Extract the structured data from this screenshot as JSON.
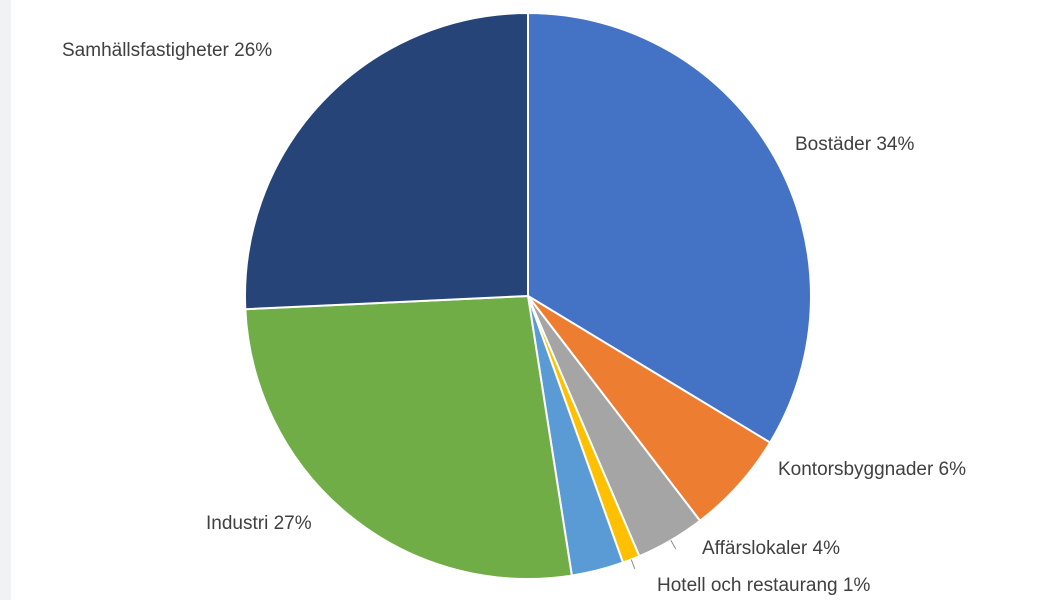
{
  "chart_data": {
    "type": "pie",
    "title": "",
    "slices": [
      {
        "label": "Bostäder",
        "value": 34,
        "display": "Bostäder 34%",
        "color": "#4472c4"
      },
      {
        "label": "Kontorsbyggnader",
        "value": 6,
        "display": "Kontorsbyggnader 6%",
        "color": "#ed7d31"
      },
      {
        "label": "Affärslokaler",
        "value": 4,
        "display": "Affärslokaler 4%",
        "color": "#a5a5a5"
      },
      {
        "label": "Hotell och restaurang",
        "value": 1,
        "display": "Hotell och restaurang 1%",
        "color": "#ffc000"
      },
      {
        "label": "",
        "value": 3,
        "display": "",
        "color": "#5b9bd5"
      },
      {
        "label": "Industri",
        "value": 27,
        "display": "Industri 27%",
        "color": "#70ad47"
      },
      {
        "label": "Samhällsfastigheter",
        "value": 26,
        "display": "Samhällsfastigheter 26%",
        "color": "#264478"
      }
    ],
    "legend": "none",
    "data_labels": "outside"
  }
}
